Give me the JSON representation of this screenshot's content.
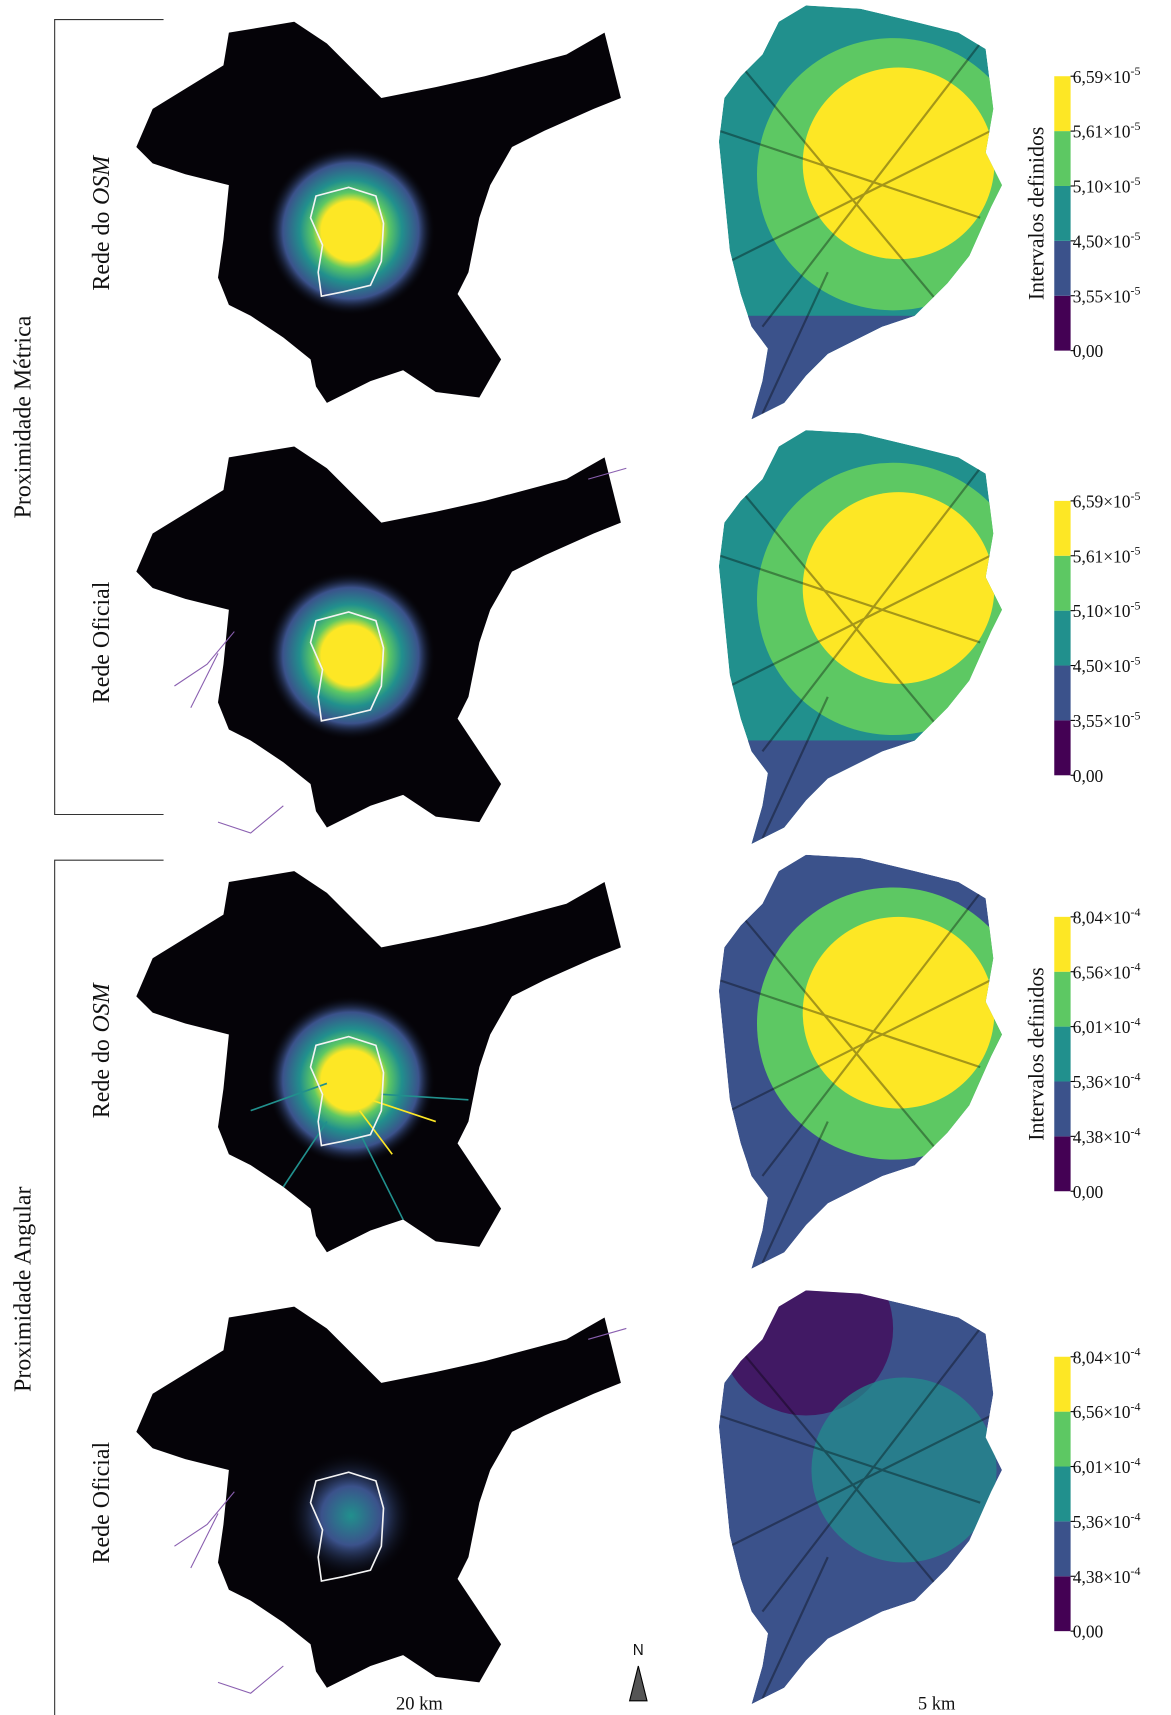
{
  "groups": [
    {
      "label": "Proximidade Métrica",
      "rows": [
        {
          "label": "Rede do",
          "label_italic": "OSM",
          "legend": {
            "title": "Intervalos definidos",
            "ticks": [
              {
                "base": "0,00"
              },
              {
                "base": "3,55×10",
                "exp": "-5"
              },
              {
                "base": "4,50×10",
                "exp": "-5"
              },
              {
                "base": "5,10×10",
                "exp": "-5"
              },
              {
                "base": "5,61×10",
                "exp": "-5"
              },
              {
                "base": "6,59×10",
                "exp": "-5"
              }
            ]
          }
        },
        {
          "label": "Rede Oficial",
          "legend": {
            "ticks": [
              {
                "base": "0,00"
              },
              {
                "base": "3,55×10",
                "exp": "-5"
              },
              {
                "base": "4,50×10",
                "exp": "-5"
              },
              {
                "base": "5,10×10",
                "exp": "-5"
              },
              {
                "base": "5,61×10",
                "exp": "-5"
              },
              {
                "base": "6,59×10",
                "exp": "-5"
              }
            ]
          }
        }
      ]
    },
    {
      "label": "Proximidade Angular",
      "rows": [
        {
          "label": "Rede do",
          "label_italic": "OSM",
          "legend": {
            "title": "Intervalos definidos",
            "ticks": [
              {
                "base": "0,00"
              },
              {
                "base": "4,38×10",
                "exp": "-4"
              },
              {
                "base": "5,36×10",
                "exp": "-4"
              },
              {
                "base": "6,01×10",
                "exp": "-4"
              },
              {
                "base": "6,56×10",
                "exp": "-4"
              },
              {
                "base": "8,04×10",
                "exp": "-4"
              }
            ]
          }
        },
        {
          "label": "Rede Oficial",
          "legend": {
            "ticks": [
              {
                "base": "0,00"
              },
              {
                "base": "4,38×10",
                "exp": "-4"
              },
              {
                "base": "5,36×10",
                "exp": "-4"
              },
              {
                "base": "6,01×10",
                "exp": "-4"
              },
              {
                "base": "6,56×10",
                "exp": "-4"
              },
              {
                "base": "8,04×10",
                "exp": "-4"
              }
            ]
          }
        }
      ]
    }
  ],
  "legend_colors": [
    "#440154",
    "#3b528b",
    "#21908d",
    "#5dc863",
    "#fde725"
  ],
  "scale_bars": [
    "20 km",
    "5 km"
  ],
  "north": "N"
}
